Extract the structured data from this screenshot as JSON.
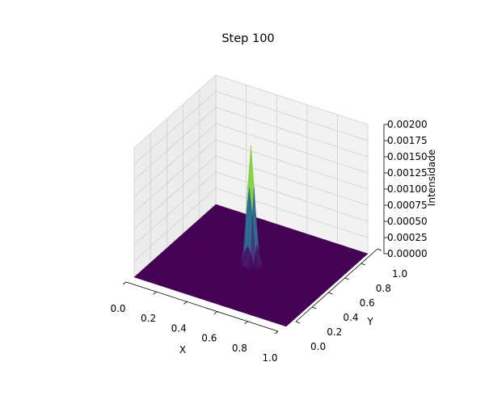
{
  "chart_data": {
    "type": "surface3d",
    "title": "Step 100",
    "xlabel": "X",
    "ylabel": "Y",
    "zlabel": "Intensidade",
    "xlim": [
      0,
      1
    ],
    "ylim": [
      0,
      1
    ],
    "zlim": [
      0,
      0.002
    ],
    "x_ticks": [
      "0.0",
      "0.2",
      "0.4",
      "0.6",
      "0.8",
      "1.0"
    ],
    "y_ticks": [
      "0.0",
      "0.2",
      "0.4",
      "0.6",
      "0.8",
      "1.0"
    ],
    "z_ticks": [
      "0.00000",
      "0.00025",
      "0.00050",
      "0.00075",
      "0.00100",
      "0.00125",
      "0.00150",
      "0.00175",
      "0.00200"
    ],
    "colormap": "viridis",
    "grid": true,
    "peak": {
      "x": 0.5,
      "y": 0.5,
      "z": 0.00185
    },
    "baseline_z": 0.0
  }
}
